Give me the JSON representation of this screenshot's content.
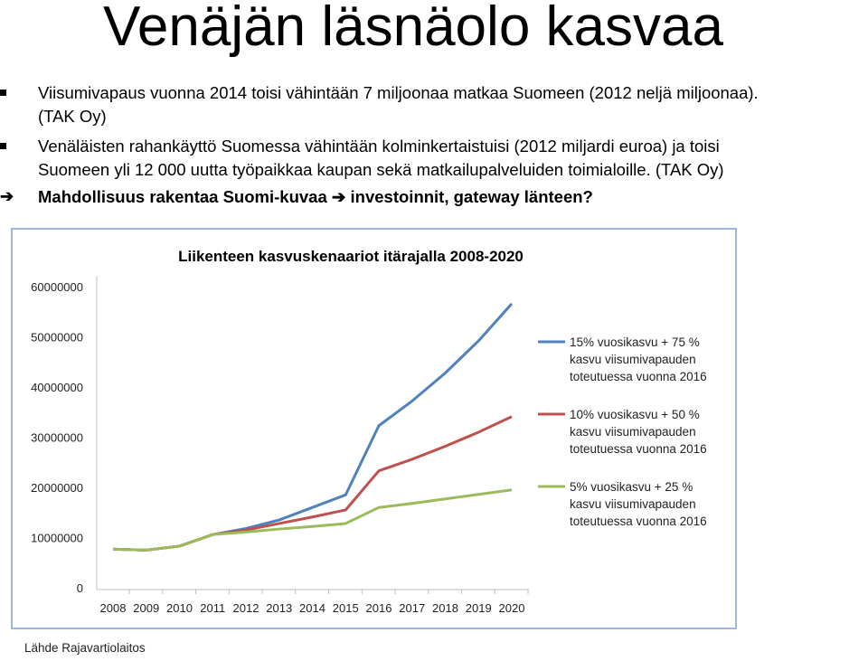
{
  "page": {
    "title": "Venäjän läsnäolo kasvaa",
    "bullets": [
      {
        "line1": "Viisumivapaus vuonna 2014 toisi vähintään 7 miljoonaa matkaa Suomeen (2012 neljä miljoonaa).",
        "line2": "(TAK Oy)"
      },
      {
        "line1": "Venäläisten rahankäyttö Suomessa vähintään kolminkertaistuisi (2012 miljardi euroa) ja toisi",
        "line2": "Suomeen yli 12 000 uutta työpaikkaa kaupan sekä matkailupalveluiden toimialoille. (TAK Oy)"
      }
    ],
    "conclusion": {
      "part1": "Mahdollisuus rakentaa Suomi-kuvaa",
      "part2": "investoinnit, gateway länteen?"
    },
    "source": "Lähde Rajavartiolaitos"
  },
  "chart_data": {
    "type": "line",
    "title": "Liikenteen kasvuskenaariot itärajalla 2008-2020",
    "xlabel": "",
    "ylabel": "",
    "x": [
      "2008",
      "2009",
      "2010",
      "2011",
      "2012",
      "2013",
      "2014",
      "2015",
      "2016",
      "2017",
      "2018",
      "2019",
      "2020"
    ],
    "yticks": [
      "0",
      "10000000",
      "20000000",
      "30000000",
      "40000000",
      "50000000",
      "60000000"
    ],
    "ylim": [
      0,
      60000000
    ],
    "grid": false,
    "legend_position": "right",
    "series": [
      {
        "name": "15% vuosikasvu + 75 % kasvu viisumivapauden toteutuessa vuonna 2016",
        "color": "#4f81bd",
        "values": [
          7700000,
          7500000,
          8300000,
          10600000,
          11800000,
          13500000,
          16000000,
          18500000,
          32300000,
          37200000,
          42800000,
          49200000,
          56600000
        ]
      },
      {
        "name": "10% vuosikasvu + 50 % kasvu viisumivapauden toteutuessa vuonna 2016",
        "color": "#c0504d",
        "values": [
          7700000,
          7500000,
          8300000,
          10600000,
          11500000,
          12800000,
          14100000,
          15500000,
          23300000,
          25600000,
          28200000,
          31000000,
          34100000
        ]
      },
      {
        "name": "5% vuosikasvu + 25 % kasvu viisumivapauden toteutuessa vuonna 2016",
        "color": "#9bbb59",
        "values": [
          7700000,
          7500000,
          8300000,
          10600000,
          11100000,
          11700000,
          12200000,
          12800000,
          16000000,
          16800000,
          17700000,
          18600000,
          19500000
        ]
      }
    ]
  }
}
